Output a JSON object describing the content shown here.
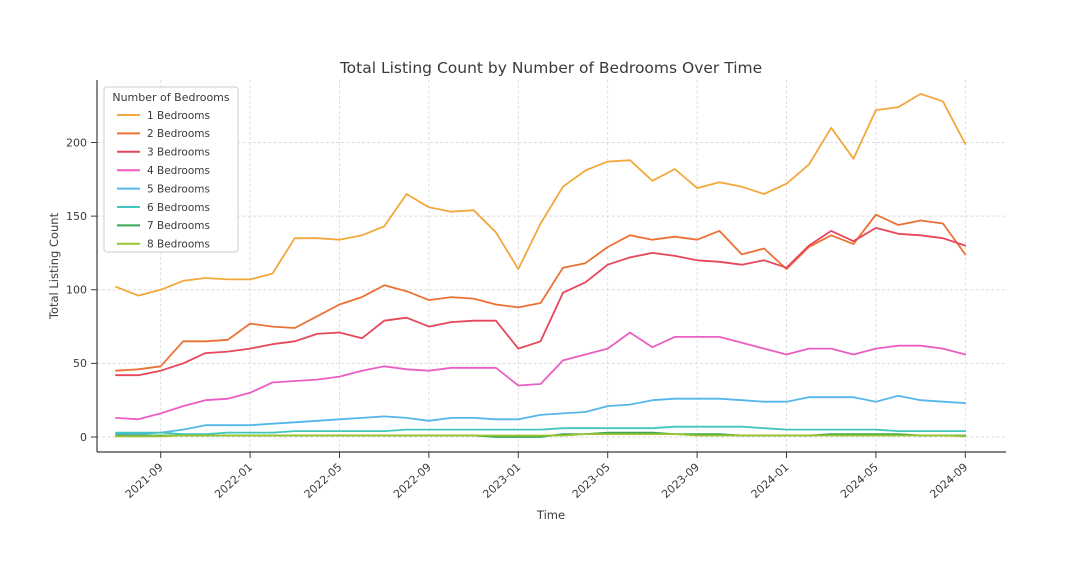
{
  "chart_data": {
    "type": "line",
    "title": "Total Listing Count by Number of Bedrooms Over Time",
    "xlabel": "Time",
    "ylabel": "Total Listing Count",
    "legend_title": "Number of Bedrooms",
    "legend_position": "upper left",
    "grid": true,
    "background": "#ffffff",
    "text_color": "#3a3a3a",
    "grid_color": "#d9d9d9",
    "ylim": [
      0,
      242
    ],
    "y_ticks": [
      0,
      50,
      100,
      150,
      200
    ],
    "x_tick_labels": [
      "2021-09",
      "2022-01",
      "2022-05",
      "2022-09",
      "2023-01",
      "2023-05",
      "2023-09",
      "2024-01",
      "2024-05",
      "2024-09"
    ],
    "x": [
      "2021-07",
      "2021-08",
      "2021-09",
      "2021-10",
      "2021-11",
      "2021-12",
      "2022-01",
      "2022-02",
      "2022-03",
      "2022-04",
      "2022-05",
      "2022-06",
      "2022-07",
      "2022-08",
      "2022-09",
      "2022-10",
      "2022-11",
      "2022-12",
      "2023-01",
      "2023-02",
      "2023-03",
      "2023-04",
      "2023-05",
      "2023-06",
      "2023-07",
      "2023-08",
      "2023-09",
      "2023-10",
      "2023-11",
      "2023-12",
      "2024-01",
      "2024-02",
      "2024-03",
      "2024-04",
      "2024-05",
      "2024-06",
      "2024-07",
      "2024-08",
      "2024-09"
    ],
    "series": [
      {
        "name": "1 Bedrooms",
        "color": "#F3A83B",
        "values": [
          102,
          96,
          100,
          106,
          108,
          107,
          107,
          111,
          135,
          135,
          134,
          137,
          143,
          165,
          156,
          153,
          154,
          139,
          114,
          145,
          170,
          181,
          187,
          188,
          174,
          182,
          169,
          173,
          170,
          165,
          172,
          185,
          210,
          189,
          222,
          224,
          233,
          228,
          199
        ]
      },
      {
        "name": "2 Bedrooms",
        "color": "#EC7134",
        "values": [
          45,
          46,
          48,
          65,
          65,
          66,
          77,
          75,
          74,
          82,
          90,
          95,
          103,
          99,
          93,
          95,
          94,
          90,
          88,
          91,
          115,
          118,
          129,
          137,
          134,
          136,
          134,
          140,
          124,
          128,
          114,
          129,
          137,
          131,
          151,
          144,
          147,
          145,
          124
        ]
      },
      {
        "name": "3 Bedrooms",
        "color": "#E8465A",
        "values": [
          42,
          42,
          45,
          50,
          57,
          58,
          60,
          63,
          65,
          70,
          71,
          67,
          79,
          81,
          75,
          78,
          79,
          79,
          60,
          65,
          98,
          105,
          117,
          122,
          125,
          123,
          120,
          119,
          117,
          120,
          115,
          130,
          140,
          133,
          142,
          138,
          137,
          135,
          130
        ]
      },
      {
        "name": "4 Bedrooms",
        "color": "#EB5EC4",
        "values": [
          13,
          12,
          16,
          21,
          25,
          26,
          30,
          37,
          38,
          39,
          41,
          45,
          48,
          46,
          45,
          47,
          47,
          47,
          35,
          36,
          52,
          56,
          60,
          71,
          61,
          68,
          68,
          68,
          64,
          60,
          56,
          60,
          60,
          56,
          60,
          62,
          62,
          60,
          56
        ]
      },
      {
        "name": "5 Bedrooms",
        "color": "#55B6E9",
        "values": [
          2,
          2,
          3,
          5,
          8,
          8,
          8,
          9,
          10,
          11,
          12,
          13,
          14,
          13,
          11,
          13,
          13,
          12,
          12,
          15,
          16,
          17,
          21,
          22,
          25,
          26,
          26,
          26,
          25,
          24,
          24,
          27,
          27,
          27,
          24,
          28,
          25,
          24,
          23
        ]
      },
      {
        "name": "6 Bedrooms",
        "color": "#40C6BD",
        "values": [
          3,
          3,
          3,
          2,
          2,
          3,
          3,
          3,
          4,
          4,
          4,
          4,
          4,
          5,
          5,
          5,
          5,
          5,
          5,
          5,
          6,
          6,
          6,
          6,
          6,
          7,
          7,
          7,
          7,
          6,
          5,
          5,
          5,
          5,
          5,
          4,
          4,
          4,
          4
        ]
      },
      {
        "name": "7 Bedrooms",
        "color": "#38A854",
        "values": [
          1,
          1,
          1,
          1,
          1,
          1,
          1,
          1,
          1,
          1,
          1,
          1,
          1,
          1,
          1,
          1,
          1,
          0,
          0,
          0,
          2,
          2,
          3,
          3,
          3,
          2,
          2,
          2,
          1,
          1,
          1,
          1,
          2,
          2,
          2,
          2,
          1,
          1,
          1
        ]
      },
      {
        "name": "8 Bedrooms",
        "color": "#9CC431",
        "values": [
          0.5,
          0.5,
          0.5,
          1,
          1,
          1,
          1,
          1,
          1,
          1,
          1,
          1,
          1,
          1,
          1,
          1,
          1,
          1,
          1,
          1,
          1,
          2,
          2,
          2,
          2,
          2,
          1,
          1,
          1,
          1,
          1,
          1,
          1,
          1,
          1,
          1,
          1,
          1,
          0.5
        ]
      }
    ]
  }
}
